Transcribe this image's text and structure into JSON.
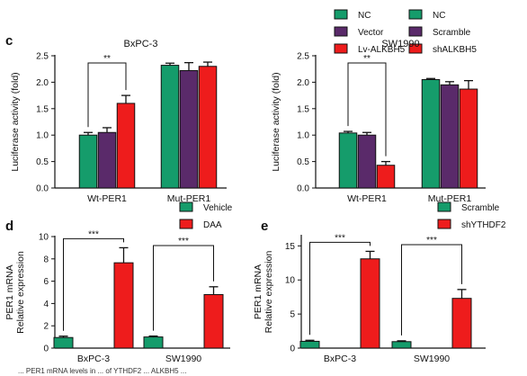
{
  "caption": "... PER1 mRNA levels in ... of YTHDF2 ... ALKBH5 ...",
  "colors": {
    "green": "#159c6b",
    "purple": "#5a2a6a",
    "red": "#ee1c1c"
  },
  "chart_data": [
    {
      "panel": "c",
      "type": "bar",
      "title": "BxPC-3",
      "ylabel": "Luciferase activity (fold)",
      "ylim": [
        0,
        2.5
      ],
      "yticks": [
        "0.0",
        "0.5",
        "1.0",
        "1.5",
        "2.0",
        "2.5"
      ],
      "categories": [
        "Wt-PER1",
        "Mut-PER1"
      ],
      "series": [
        {
          "name": "NC",
          "color": "#159c6b",
          "values": [
            1.0,
            2.32
          ],
          "errors": [
            0.05,
            0.04
          ]
        },
        {
          "name": "Vector",
          "color": "#5a2a6a",
          "values": [
            1.05,
            2.22
          ],
          "errors": [
            0.09,
            0.15
          ]
        },
        {
          "name": "Lv-ALKBH5",
          "color": "#ee1c1c",
          "values": [
            1.6,
            2.3
          ],
          "errors": [
            0.15,
            0.08
          ]
        }
      ],
      "annotations": [
        {
          "label": "**",
          "category": 0,
          "from": 0,
          "to": 2
        }
      ]
    },
    {
      "panel": "",
      "type": "bar",
      "title": "SW1990",
      "ylabel": "Luciferase activity (fold)",
      "ylim": [
        0,
        2.5
      ],
      "yticks": [
        "0.0",
        "0.5",
        "1.0",
        "1.5",
        "2.0",
        "2.5"
      ],
      "categories": [
        "Wt-PER1",
        "Mut-PER1"
      ],
      "series": [
        {
          "name": "NC",
          "color": "#159c6b",
          "values": [
            1.04,
            2.05
          ],
          "errors": [
            0.03,
            0.02
          ]
        },
        {
          "name": "Scramble",
          "color": "#5a2a6a",
          "values": [
            1.0,
            1.95
          ],
          "errors": [
            0.05,
            0.06
          ]
        },
        {
          "name": "shALKBH5",
          "color": "#ee1c1c",
          "values": [
            0.43,
            1.87
          ],
          "errors": [
            0.07,
            0.16
          ]
        }
      ],
      "annotations": [
        {
          "label": "**",
          "category": 0,
          "from": 0,
          "to": 2
        }
      ]
    },
    {
      "panel": "d",
      "type": "bar",
      "title": "",
      "ylabel": "PER1 mRNA\nRelative expression",
      "ylim": [
        0,
        10
      ],
      "yticks": [
        "0",
        "2",
        "4",
        "6",
        "8",
        "10"
      ],
      "categories": [
        "BxPC-3",
        "SW1990"
      ],
      "series": [
        {
          "name": "Vehicle",
          "color": "#159c6b",
          "values": [
            0.95,
            1.0
          ],
          "errors": [
            0.12,
            0.08
          ]
        },
        {
          "name": "DAA",
          "color": "#ee1c1c",
          "values": [
            7.65,
            4.8
          ],
          "errors": [
            1.35,
            0.7
          ]
        }
      ],
      "annotations": [
        {
          "label": "***",
          "category": 0,
          "from": 0,
          "to": 1
        },
        {
          "label": "***",
          "category": 1,
          "from": 0,
          "to": 1
        }
      ]
    },
    {
      "panel": "e",
      "type": "bar",
      "title": "",
      "ylabel": "PER1 mRNA\nRelative expression",
      "ylim": [
        0,
        16.5
      ],
      "yticks": [
        "0",
        "5",
        "10",
        "15"
      ],
      "categories": [
        "BxPC-3",
        "SW1990"
      ],
      "series": [
        {
          "name": "Scramble",
          "color": "#159c6b",
          "values": [
            1.0,
            0.95
          ],
          "errors": [
            0.15,
            0.12
          ]
        },
        {
          "name": "shYTHDF2",
          "color": "#ee1c1c",
          "values": [
            13.1,
            7.3
          ],
          "errors": [
            1.1,
            1.3
          ]
        }
      ],
      "annotations": [
        {
          "label": "***",
          "category": 0,
          "from": 0,
          "to": 1
        },
        {
          "label": "***",
          "category": 1,
          "from": 0,
          "to": 1
        }
      ]
    }
  ]
}
